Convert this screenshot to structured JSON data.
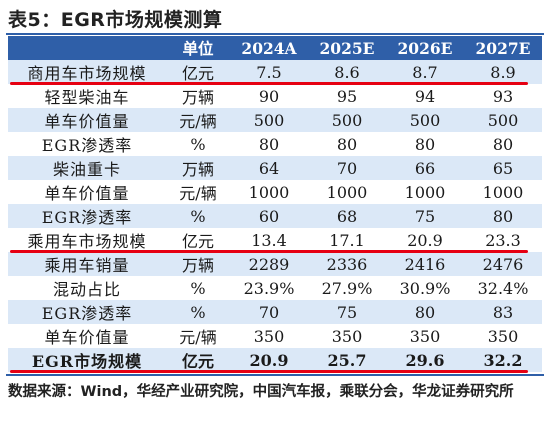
{
  "title": "表5：EGR市场规模测算",
  "table": {
    "headers": [
      "",
      "单位",
      "2024A",
      "2025E",
      "2026E",
      "2027E"
    ],
    "rows": [
      {
        "name": "商用车市场规模",
        "unit": "亿元",
        "values": [
          "7.5",
          "8.6",
          "8.7",
          "8.9"
        ],
        "highlight": true,
        "bold": false
      },
      {
        "name": "轻型柴油车",
        "unit": "万辆",
        "values": [
          "90",
          "95",
          "94",
          "93"
        ],
        "highlight": false,
        "bold": false
      },
      {
        "name": "单车价值量",
        "unit": "元/辆",
        "values": [
          "500",
          "500",
          "500",
          "500"
        ],
        "highlight": false,
        "bold": false
      },
      {
        "name": "EGR渗透率",
        "unit": "%",
        "values": [
          "80",
          "80",
          "80",
          "80"
        ],
        "highlight": false,
        "bold": false
      },
      {
        "name": "柴油重卡",
        "unit": "万辆",
        "values": [
          "64",
          "70",
          "66",
          "65"
        ],
        "highlight": false,
        "bold": false
      },
      {
        "name": "单车价值量",
        "unit": "元/辆",
        "values": [
          "1000",
          "1000",
          "1000",
          "1000"
        ],
        "highlight": false,
        "bold": false
      },
      {
        "name": "EGR渗透率",
        "unit": "%",
        "values": [
          "60",
          "68",
          "75",
          "80"
        ],
        "highlight": false,
        "bold": false
      },
      {
        "name": "乘用车市场规模",
        "unit": "亿元",
        "values": [
          "13.4",
          "17.1",
          "20.9",
          "23.3"
        ],
        "highlight": true,
        "bold": false
      },
      {
        "name": "乘用车销量",
        "unit": "万辆",
        "values": [
          "2289",
          "2336",
          "2416",
          "2476"
        ],
        "highlight": false,
        "bold": false
      },
      {
        "name": "混动占比",
        "unit": "%",
        "values": [
          "23.9%",
          "27.9%",
          "30.9%",
          "32.4%"
        ],
        "highlight": false,
        "bold": false
      },
      {
        "name": "EGR渗透率",
        "unit": "%",
        "values": [
          "70",
          "75",
          "80",
          "83"
        ],
        "highlight": false,
        "bold": false
      },
      {
        "name": "单车价值量",
        "unit": "元/辆",
        "values": [
          "350",
          "350",
          "350",
          "350"
        ],
        "highlight": false,
        "bold": false
      },
      {
        "name": "EGR市场规模",
        "unit": "亿元",
        "values": [
          "20.9",
          "25.7",
          "29.6",
          "32.2"
        ],
        "highlight": true,
        "bold": true
      }
    ]
  },
  "source": "数据来源：Wind，华经产业研究院，中国汽车报，乘联分会，华龙证券研究所",
  "colors": {
    "header_bg": "#2f5fa8",
    "band": "#dbe8f7",
    "highlight_line": "#e60012"
  }
}
